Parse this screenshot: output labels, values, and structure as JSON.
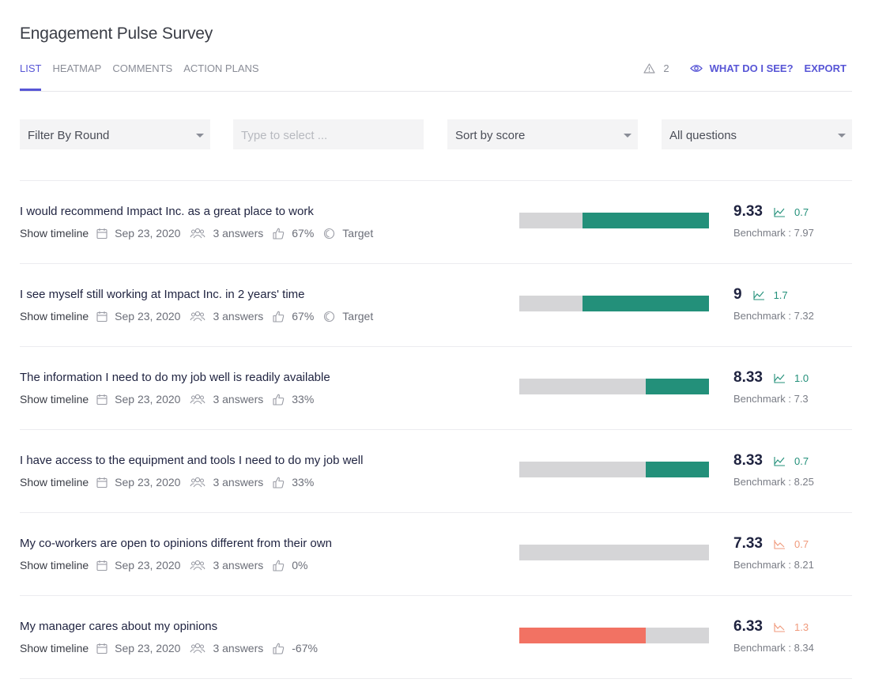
{
  "page": {
    "title": "Engagement Pulse Survey"
  },
  "tabs": [
    {
      "label": "List",
      "active": true
    },
    {
      "label": "Heatmap",
      "active": false
    },
    {
      "label": "Comments",
      "active": false
    },
    {
      "label": "Action Plans",
      "active": false
    }
  ],
  "toolbar": {
    "warning_count": "2",
    "what_do_i_see": "What do I see?",
    "export": "Export"
  },
  "filters": {
    "round": "Filter By Round",
    "select_placeholder": "Type to select ...",
    "sort": "Sort by score",
    "questions": "All questions"
  },
  "colors": {
    "accent": "#5856d6",
    "positive": "#23907a",
    "negative": "#f27263",
    "neutral": "#d5d5d7"
  },
  "questions": [
    {
      "title": "I would recommend Impact Inc. as a great place to work",
      "timeline": "Show timeline",
      "date": "Sep 23, 2020",
      "answers": "3 answers",
      "favorability": "67%",
      "target": "Target",
      "score": "9.33",
      "trend_dir": "up",
      "trend": "0.7",
      "benchmark": "Benchmark : 7.97",
      "favorability_value": 67
    },
    {
      "title": "I see myself still working at Impact Inc. in 2 years' time",
      "timeline": "Show timeline",
      "date": "Sep 23, 2020",
      "answers": "3 answers",
      "favorability": "67%",
      "target": "Target",
      "score": "9",
      "trend_dir": "up",
      "trend": "1.7",
      "benchmark": "Benchmark : 7.32",
      "favorability_value": 67
    },
    {
      "title": "The information I need to do my job well is readily available",
      "timeline": "Show timeline",
      "date": "Sep 23, 2020",
      "answers": "3 answers",
      "favorability": "33%",
      "target": "",
      "score": "8.33",
      "trend_dir": "up",
      "trend": "1.0",
      "benchmark": "Benchmark : 7.3",
      "favorability_value": 33
    },
    {
      "title": "I have access to the equipment and tools I need to do my job well",
      "timeline": "Show timeline",
      "date": "Sep 23, 2020",
      "answers": "3 answers",
      "favorability": "33%",
      "target": "",
      "score": "8.33",
      "trend_dir": "up",
      "trend": "0.7",
      "benchmark": "Benchmark : 8.25",
      "favorability_value": 33
    },
    {
      "title": "My co-workers are open to opinions different from their own",
      "timeline": "Show timeline",
      "date": "Sep 23, 2020",
      "answers": "3 answers",
      "favorability": "0%",
      "target": "",
      "score": "7.33",
      "trend_dir": "down",
      "trend": "0.7",
      "benchmark": "Benchmark : 8.21",
      "favorability_value": 0
    },
    {
      "title": "My manager cares about my opinions",
      "timeline": "Show timeline",
      "date": "Sep 23, 2020",
      "answers": "3 answers",
      "favorability": "-67%",
      "target": "",
      "score": "6.33",
      "trend_dir": "down",
      "trend": "1.3",
      "benchmark": "Benchmark : 8.34",
      "favorability_value": -67
    }
  ]
}
